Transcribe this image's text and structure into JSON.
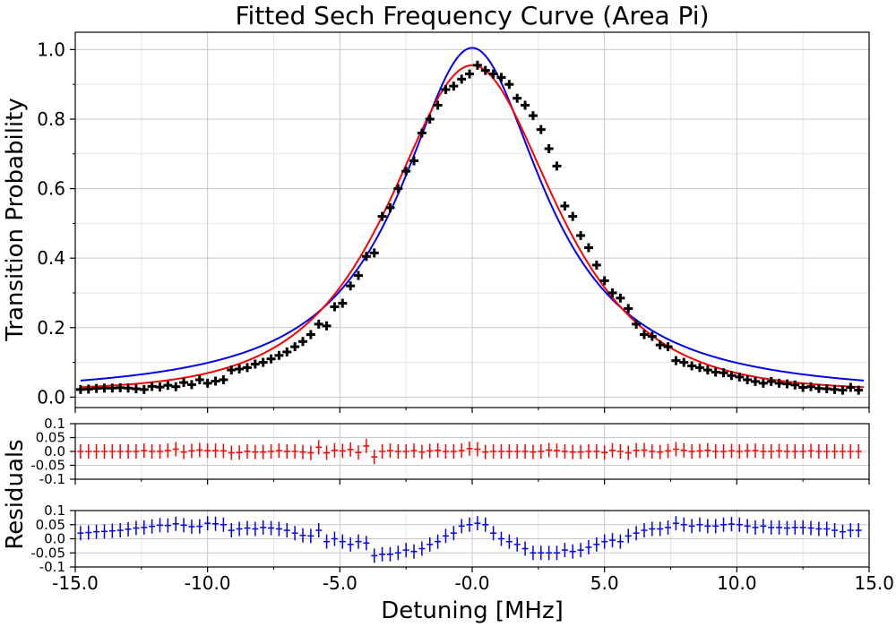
{
  "chart_data": {
    "type": "scatter",
    "title": "Fitted Sech Frequency Curve (Area Pi)",
    "xlabel": "Detuning [MHz]",
    "ylabel_main": "Transition Probability",
    "ylabel_residuals": "Residuals",
    "xlim": [
      -15,
      15
    ],
    "main_ylim": [
      -0.03,
      1.05
    ],
    "residual_ylim": [
      -0.1,
      0.1
    ],
    "x_ticks": [
      "-15.0",
      "-10.0",
      "-5.0",
      "-0.0",
      "5.0",
      "10.0",
      "15.0"
    ],
    "x_tick_values": [
      -15,
      -10,
      -5,
      0,
      5,
      10,
      15
    ],
    "main_y_ticks": [
      "0.0",
      "0.2",
      "0.4",
      "0.6",
      "0.8",
      "1.0"
    ],
    "main_y_tick_values": [
      0.0,
      0.2,
      0.4,
      0.6,
      0.8,
      1.0
    ],
    "residual_y_ticks": [
      "0.1",
      "0.05",
      "0.0",
      "-0.05",
      "-0.1"
    ],
    "residual_y_tick_values": [
      0.1,
      0.05,
      0.0,
      -0.05,
      -0.1
    ],
    "grid": true,
    "colors": {
      "data": "#000000",
      "red_fit": "#ff0000",
      "blue_fit": "#0000ee"
    },
    "data_points": {
      "x": [
        -14.8,
        -14.5,
        -14.2,
        -13.9,
        -13.6,
        -13.3,
        -13.0,
        -12.7,
        -12.4,
        -12.1,
        -11.8,
        -11.5,
        -11.2,
        -10.9,
        -10.6,
        -10.3,
        -10.0,
        -9.7,
        -9.4,
        -9.1,
        -8.8,
        -8.5,
        -8.2,
        -7.9,
        -7.6,
        -7.3,
        -7.0,
        -6.7,
        -6.4,
        -6.1,
        -5.8,
        -5.5,
        -5.2,
        -4.9,
        -4.6,
        -4.3,
        -4.0,
        -3.7,
        -3.4,
        -3.1,
        -2.8,
        -2.5,
        -2.2,
        -1.9,
        -1.6,
        -1.3,
        -1.0,
        -0.7,
        -0.4,
        -0.1,
        0.2,
        0.5,
        0.8,
        1.1,
        1.4,
        1.7,
        2.0,
        2.3,
        2.6,
        2.9,
        3.2,
        3.5,
        3.8,
        4.1,
        4.4,
        4.7,
        5.0,
        5.3,
        5.6,
        5.9,
        6.2,
        6.5,
        6.8,
        7.1,
        7.4,
        7.7,
        8.0,
        8.3,
        8.6,
        8.9,
        9.2,
        9.5,
        9.8,
        10.1,
        10.4,
        10.7,
        11.0,
        11.3,
        11.6,
        11.9,
        12.2,
        12.5,
        12.8,
        13.1,
        13.4,
        13.7,
        14.0,
        14.3,
        14.6
      ],
      "y": [
        0.022,
        0.023,
        0.025,
        0.026,
        0.026,
        0.027,
        0.026,
        0.024,
        0.022,
        0.031,
        0.029,
        0.034,
        0.03,
        0.042,
        0.036,
        0.05,
        0.04,
        0.046,
        0.05,
        0.078,
        0.081,
        0.085,
        0.095,
        0.1,
        0.11,
        0.12,
        0.13,
        0.145,
        0.16,
        0.18,
        0.21,
        0.205,
        0.26,
        0.27,
        0.32,
        0.35,
        0.405,
        0.415,
        0.52,
        0.545,
        0.6,
        0.65,
        0.68,
        0.76,
        0.8,
        0.84,
        0.885,
        0.895,
        0.915,
        0.93,
        0.955,
        0.94,
        0.93,
        0.92,
        0.9,
        0.86,
        0.84,
        0.81,
        0.77,
        0.715,
        0.665,
        0.55,
        0.52,
        0.465,
        0.43,
        0.38,
        0.335,
        0.3,
        0.285,
        0.255,
        0.21,
        0.18,
        0.175,
        0.15,
        0.145,
        0.105,
        0.1,
        0.09,
        0.085,
        0.078,
        0.072,
        0.07,
        0.062,
        0.058,
        0.05,
        0.045,
        0.04,
        0.045,
        0.04,
        0.038,
        0.035,
        0.028,
        0.03,
        0.025,
        0.024,
        0.022,
        0.02,
        0.028,
        0.02
      ]
    },
    "red_residuals": [
      0,
      0,
      0,
      0,
      0,
      0,
      0,
      0,
      0.003,
      0,
      0,
      0.003,
      0.008,
      -0.002,
      0.002,
      0.005,
      0.003,
      0.003,
      0.002,
      -0.005,
      -0.004,
      0,
      -0.002,
      -0.002,
      0,
      0.003,
      0,
      0,
      -0.002,
      -0.005,
      0.015,
      -0.005,
      0.004,
      0.002,
      0.007,
      -0.004,
      0.02,
      -0.02,
      0,
      0.003,
      0,
      0,
      0.003,
      -0.002,
      0.002,
      0.004,
      0,
      0,
      0.003,
      0.01,
      0.008,
      -0.002,
      0,
      0,
      0,
      0,
      0,
      -0.002,
      0,
      0.005,
      0.003,
      0,
      -0.002,
      -0.002,
      0,
      0,
      -0.004,
      0.004,
      0,
      -0.005,
      0.004,
      0.005,
      0,
      -0.002,
      0.002,
      0.008,
      0.004,
      0,
      0.002,
      0.004,
      0,
      0,
      0.002,
      0,
      0.002,
      0.003,
      0,
      0,
      0.002,
      0,
      0,
      0,
      0.002,
      0,
      0,
      0,
      0,
      0,
      0
    ],
    "blue_residuals": [
      0.02,
      0.022,
      0.025,
      0.026,
      0.028,
      0.03,
      0.034,
      0.038,
      0.04,
      0.044,
      0.048,
      0.047,
      0.053,
      0.048,
      0.043,
      0.044,
      0.055,
      0.053,
      0.05,
      0.03,
      0.035,
      0.038,
      0.035,
      0.04,
      0.038,
      0.035,
      0.03,
      0.02,
      0.012,
      0.01,
      0.03,
      -0.01,
      0.0,
      -0.01,
      -0.02,
      -0.01,
      -0.015,
      -0.06,
      -0.055,
      -0.055,
      -0.05,
      -0.04,
      -0.045,
      -0.035,
      -0.02,
      -0.01,
      0.01,
      0.02,
      0.045,
      0.05,
      0.055,
      0.05,
      0.02,
      0.0,
      -0.01,
      -0.02,
      -0.035,
      -0.05,
      -0.05,
      -0.05,
      -0.05,
      -0.04,
      -0.045,
      -0.04,
      -0.03,
      -0.02,
      -0.01,
      -0.005,
      -0.01,
      0.01,
      0.02,
      0.03,
      0.035,
      0.035,
      0.04,
      0.055,
      0.05,
      0.045,
      0.05,
      0.045,
      0.045,
      0.05,
      0.052,
      0.05,
      0.045,
      0.04,
      0.045,
      0.04,
      0.04,
      0.038,
      0.04,
      0.04,
      0.038,
      0.035,
      0.035,
      0.03,
      0.025,
      0.03,
      0.03
    ]
  }
}
